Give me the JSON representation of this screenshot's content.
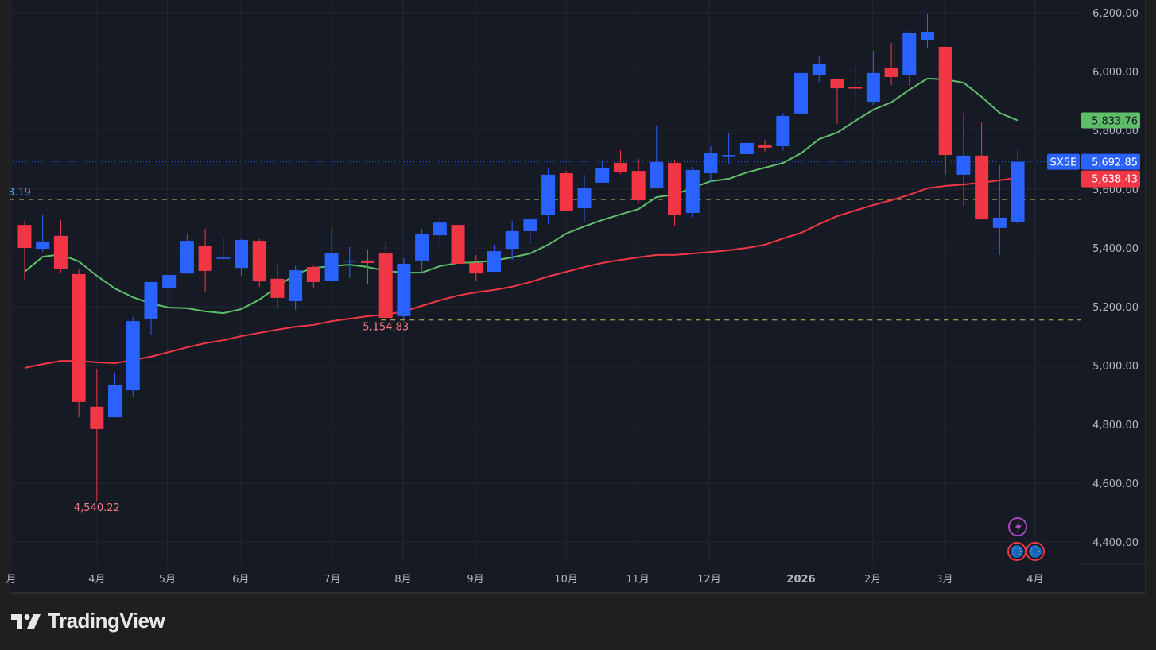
{
  "chart_data": {
    "type": "candlestick",
    "symbol": "SX5E",
    "ylim": [
      4330,
      6230
    ],
    "y_ticks": [
      "6,200.00",
      "6,000.00",
      "5,800.00",
      "5,600.00",
      "5,400.00",
      "5,200.00",
      "5,000.00",
      "4,800.00",
      "4,600.00",
      "4,400.00"
    ],
    "y_tick_values": [
      6200,
      6000,
      5800,
      5600,
      5400,
      5200,
      5000,
      4800,
      4600,
      4400
    ],
    "x_ticks": [
      {
        "label": "月",
        "index": -0.75
      },
      {
        "label": "4月",
        "index": 4
      },
      {
        "label": "5月",
        "index": 7.9
      },
      {
        "label": "6月",
        "index": 11.97
      },
      {
        "label": "7月",
        "index": 17.04
      },
      {
        "label": "8月",
        "index": 20.96
      },
      {
        "label": "9月",
        "index": 24.97
      },
      {
        "label": "10月",
        "index": 29.99
      },
      {
        "label": "11月",
        "index": 33.95
      },
      {
        "label": "12月",
        "index": 37.91
      },
      {
        "label": "2026",
        "index": 43.0,
        "bold": true
      },
      {
        "label": "2月",
        "index": 46.97
      },
      {
        "label": "3月",
        "index": 50.94
      },
      {
        "label": "4月",
        "index": 55.96
      }
    ],
    "candles_ohlc": [
      [
        5478,
        5492,
        5292,
        5400
      ],
      [
        5397,
        5514,
        5386,
        5422
      ],
      [
        5441,
        5495,
        5313,
        5327
      ],
      [
        5311,
        5327,
        4824,
        4876
      ],
      [
        4860,
        4987,
        4540.22,
        4784
      ],
      [
        4824,
        4976,
        4824,
        4935
      ],
      [
        4916,
        5165,
        4895,
        5151
      ],
      [
        5159,
        5284,
        5105,
        5284
      ],
      [
        5265,
        5322,
        5208,
        5308
      ],
      [
        5313,
        5449,
        5313,
        5424
      ],
      [
        5408,
        5465,
        5251,
        5322
      ],
      [
        5365,
        5435,
        5359,
        5367
      ],
      [
        5332,
        5430,
        5305,
        5427
      ],
      [
        5424,
        5430,
        5267,
        5286
      ],
      [
        5295,
        5343,
        5195,
        5230
      ],
      [
        5219,
        5340,
        5189,
        5324
      ],
      [
        5335,
        5340,
        5265,
        5284
      ],
      [
        5289,
        5468,
        5286,
        5381
      ],
      [
        5355,
        5403,
        5297,
        5357
      ],
      [
        5357,
        5395,
        5276,
        5349
      ],
      [
        5381,
        5419,
        5154.83,
        5162
      ],
      [
        5168,
        5365,
        5160,
        5346
      ],
      [
        5357,
        5465,
        5314,
        5446
      ],
      [
        5443,
        5508,
        5411,
        5486
      ],
      [
        5478,
        5478,
        5346,
        5346
      ],
      [
        5349,
        5376,
        5289,
        5313
      ],
      [
        5319,
        5411,
        5319,
        5389
      ],
      [
        5397,
        5492,
        5359,
        5457
      ],
      [
        5457,
        5503,
        5414,
        5497
      ],
      [
        5511,
        5673,
        5481,
        5649
      ],
      [
        5654,
        5662,
        5527,
        5527
      ],
      [
        5535,
        5649,
        5486,
        5605
      ],
      [
        5622,
        5697,
        5622,
        5673
      ],
      [
        5689,
        5732,
        5651,
        5657
      ],
      [
        5662,
        5703,
        5551,
        5562
      ],
      [
        5603,
        5816,
        5603,
        5692
      ],
      [
        5689,
        5700,
        5473,
        5511
      ],
      [
        5519,
        5676,
        5503,
        5665
      ],
      [
        5654,
        5746,
        5624,
        5722
      ],
      [
        5714,
        5792,
        5684,
        5716
      ],
      [
        5719,
        5770,
        5676,
        5757
      ],
      [
        5751,
        5768,
        5727,
        5741
      ],
      [
        5746,
        5859,
        5732,
        5849
      ],
      [
        5857,
        5997,
        5857,
        5995
      ],
      [
        5989,
        6051,
        5965,
        6027
      ],
      [
        5973,
        5973,
        5822,
        5943
      ],
      [
        5946,
        6022,
        5876,
        5943
      ],
      [
        5897,
        6070,
        5886,
        5995
      ],
      [
        6011,
        6097,
        5954,
        5981
      ],
      [
        5989,
        6138,
        5951,
        6130
      ],
      [
        6108,
        6197,
        6081,
        6135
      ],
      [
        6084,
        6084,
        5649,
        5716
      ],
      [
        5649,
        5859,
        5543,
        5714
      ],
      [
        5714,
        5830,
        5497,
        5497
      ],
      [
        5468,
        5681,
        5376,
        5503
      ],
      [
        5489,
        5732,
        5481,
        5692.85
      ]
    ],
    "series": [
      {
        "color": "#5fbf68",
        "values": [
          5319,
          5370,
          5378,
          5354,
          5305,
          5262,
          5232,
          5211,
          5197,
          5195,
          5184,
          5178,
          5192,
          5224,
          5268,
          5311,
          5332,
          5338,
          5343,
          5335,
          5322,
          5316,
          5316,
          5338,
          5349,
          5351,
          5357,
          5368,
          5381,
          5411,
          5449,
          5473,
          5495,
          5514,
          5532,
          5573,
          5581,
          5605,
          5627,
          5635,
          5657,
          5673,
          5689,
          5722,
          5770,
          5792,
          5832,
          5870,
          5895,
          5938,
          5976,
          5973,
          5962,
          5914,
          5859,
          5833.76
        ]
      },
      {
        "color": "#f23645",
        "values": [
          4992,
          5005,
          5016,
          5016,
          5011,
          5008,
          5019,
          5030,
          5046,
          5062,
          5076,
          5086,
          5100,
          5111,
          5122,
          5132,
          5138,
          5151,
          5159,
          5168,
          5173,
          5184,
          5203,
          5222,
          5238,
          5249,
          5257,
          5268,
          5284,
          5303,
          5319,
          5335,
          5349,
          5359,
          5368,
          5376,
          5376,
          5381,
          5386,
          5392,
          5400,
          5411,
          5432,
          5451,
          5481,
          5508,
          5527,
          5546,
          5562,
          5581,
          5603,
          5611,
          5616,
          5622,
          5630,
          5638.43
        ]
      }
    ],
    "annotations": {
      "low_label": "4,540.22",
      "low_index": 4,
      "low_value": 4540.22,
      "swing_label": "5,154.83",
      "swing_index": 20,
      "swing_value": 5154.83,
      "left_level_label": "3.19",
      "left_level_value": 5565,
      "current_price": 5692.85
    },
    "price_labels": {
      "symbol": "SX5E",
      "last": "5,692.85",
      "ma_fast": "5,833.76",
      "ma_slow": "5,638.43"
    },
    "grid": true,
    "colors": {
      "up": "#2962ff",
      "down": "#f23645",
      "ma_fast": "#5fbf68",
      "ma_slow": "#f23645",
      "background": "#161a25",
      "level_line": "#e6e35a",
      "event": "#ab47bc"
    },
    "events": [
      "lightning-event-icon",
      "eu-flag-icon",
      "eu-flag-icon"
    ]
  },
  "branding": {
    "logo_text": "TradingView"
  }
}
